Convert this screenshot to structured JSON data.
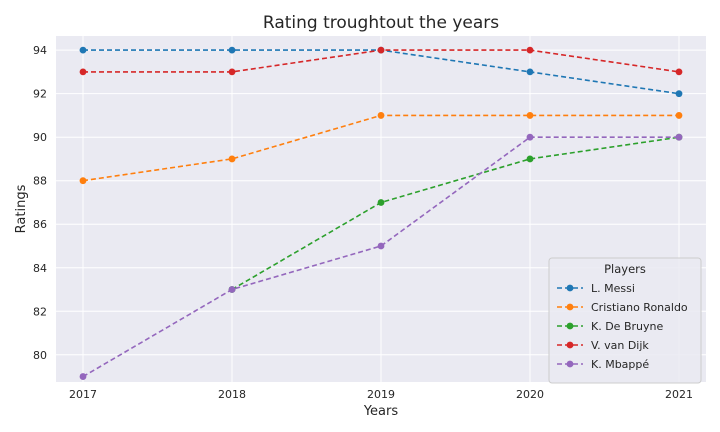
{
  "chart_data": {
    "type": "line",
    "title": "Rating troughtout the years",
    "xlabel": "Years",
    "ylabel": "Ratings",
    "categories": [
      "2017",
      "2018",
      "2019",
      "2020",
      "2021"
    ],
    "yticks": [
      80,
      82,
      84,
      86,
      88,
      90,
      92,
      94
    ],
    "ylim": [
      78.75,
      94.65
    ],
    "grid": true,
    "line_style": "dashed",
    "marker": "circle",
    "legend": {
      "title": "Players",
      "placement": "lower-right"
    },
    "series": [
      {
        "name": "L. Messi",
        "color": "#1f77b4",
        "values": [
          94,
          94,
          94,
          93,
          92
        ]
      },
      {
        "name": "Cristiano Ronaldo",
        "color": "#ff7f0e",
        "values": [
          88,
          89,
          91,
          91,
          91
        ]
      },
      {
        "name": "K. De Bruyne",
        "color": "#2ca02c",
        "values": [
          null,
          83,
          87,
          89,
          90
        ]
      },
      {
        "name": "V. van Dijk",
        "color": "#d62728",
        "values": [
          93,
          93,
          94,
          94,
          93
        ]
      },
      {
        "name": "K. Mbappé",
        "color": "#9467bd",
        "values": [
          79,
          83,
          85,
          90,
          90
        ]
      }
    ]
  }
}
